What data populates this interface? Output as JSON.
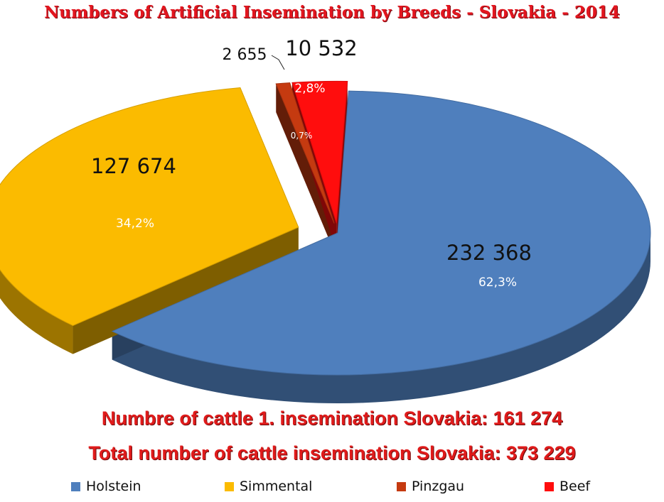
{
  "title": "Numbers of Artificial Insemination by Breeds - Slovakia  - 2014",
  "footer": {
    "line1": "Numbre of cattle 1. insemination Slovakia: 161 274",
    "line2": "Total number of cattle insemination Slovakia: 373 229"
  },
  "chart_data": {
    "type": "pie",
    "style": "3d-exploded",
    "title": "Numbers of Artificial Insemination by Breeds - Slovakia  - 2014",
    "legend_position": "bottom",
    "slices": [
      {
        "name": "Holstein",
        "value": 232368,
        "value_label": "232 368",
        "percent_label": "62,3%",
        "color": "#4f7fbd"
      },
      {
        "name": "Simmental",
        "value": 127674,
        "value_label": "127 674",
        "percent_label": "34,2%",
        "color": "#fbbb00"
      },
      {
        "name": "Pinzgau",
        "value": 2655,
        "value_label": "2 655",
        "percent_label": "0,7%",
        "color": "#c53a10"
      },
      {
        "name": "Beef",
        "value": 10532,
        "value_label": "10 532",
        "percent_label": "2,8%",
        "color": "#ff0d0d"
      }
    ]
  }
}
